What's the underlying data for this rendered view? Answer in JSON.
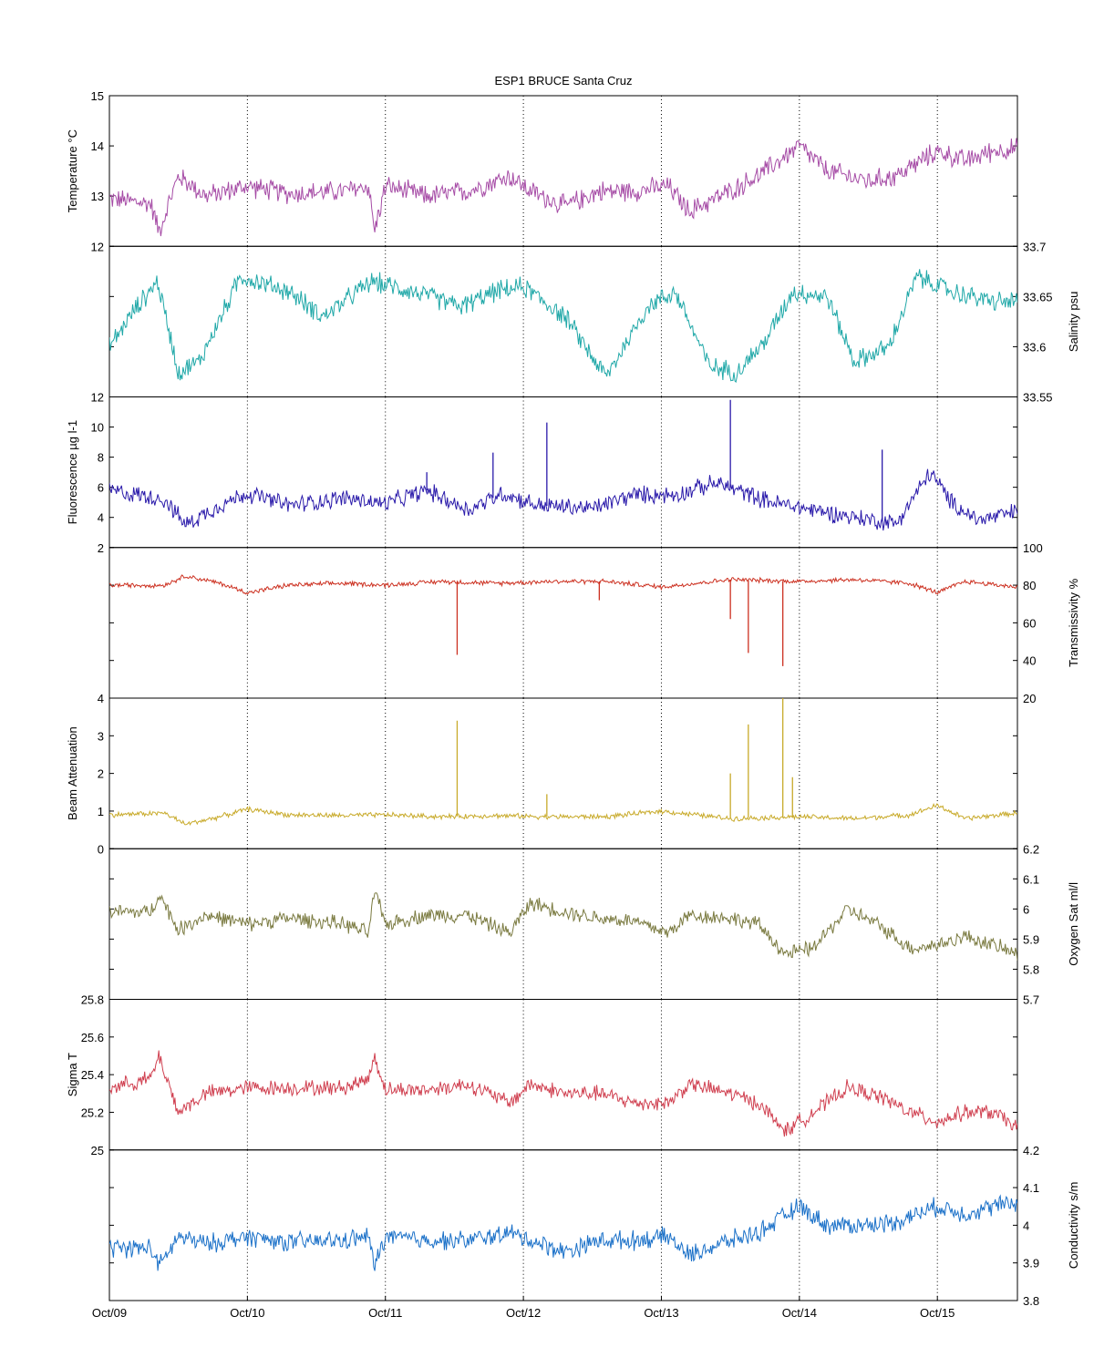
{
  "chart_data": {
    "type": "line",
    "title": "ESP1 BRUCE Santa Cruz",
    "x": {
      "ticks": [
        "Oct/09",
        "Oct/10",
        "Oct/11",
        "Oct/12",
        "Oct/13",
        "Oct/14",
        "Oct/15"
      ],
      "range_days": [
        0,
        6.58
      ],
      "grid": "vertical dotted at midnight"
    },
    "panels": [
      {
        "ylabel": "Temperature °C",
        "side": "left",
        "ylim": [
          12,
          15
        ],
        "ticks": [
          "12",
          "13",
          "14",
          "15"
        ],
        "color": "#a64ca6",
        "day": [
          0,
          0.3,
          0.36,
          0.5,
          0.7,
          1.0,
          1.3,
          1.7,
          1.88,
          1.92,
          2.0,
          2.3,
          2.6,
          2.9,
          3.05,
          3.3,
          3.55,
          3.8,
          4.05,
          4.2,
          4.5,
          4.7,
          5.0,
          5.2,
          5.5,
          5.7,
          6.0,
          6.2,
          6.4,
          6.58
        ],
        "values": [
          12.95,
          12.85,
          12.3,
          13.4,
          13.0,
          13.2,
          13.05,
          13.1,
          13.2,
          12.3,
          13.2,
          13.0,
          13.1,
          13.4,
          13.1,
          12.8,
          13.1,
          13.1,
          13.2,
          12.7,
          13.1,
          13.4,
          14.0,
          13.5,
          13.3,
          13.4,
          13.9,
          13.7,
          13.9,
          13.95
        ],
        "noise": 0.25
      },
      {
        "ylabel": "Salinity psu",
        "side": "right",
        "ylim": [
          33.55,
          33.7
        ],
        "ticks": [
          "33.55",
          "33.6",
          "33.65",
          "33.7"
        ],
        "color": "#20a8a8",
        "day": [
          0,
          0.2,
          0.35,
          0.5,
          0.65,
          0.95,
          1.3,
          1.55,
          1.9,
          2.2,
          2.55,
          2.8,
          3.0,
          3.3,
          3.6,
          3.9,
          4.1,
          4.35,
          4.55,
          4.75,
          4.95,
          5.2,
          5.4,
          5.65,
          5.85,
          6.1,
          6.4,
          6.58
        ],
        "values": [
          33.6,
          33.64,
          33.665,
          33.575,
          33.585,
          33.67,
          33.655,
          33.63,
          33.665,
          33.655,
          33.64,
          33.655,
          33.66,
          33.63,
          33.57,
          33.64,
          33.655,
          33.58,
          33.575,
          33.605,
          33.655,
          33.65,
          33.585,
          33.6,
          33.67,
          33.655,
          33.645,
          33.645
        ],
        "noise": 0.012
      },
      {
        "ylabel": "Fluorescence µg l-1",
        "side": "left",
        "ylim": [
          2,
          12
        ],
        "ticks": [
          "2",
          "4",
          "6",
          "8",
          "10",
          "12"
        ],
        "color": "#2a1aaa",
        "day": [
          0,
          0.4,
          0.55,
          0.8,
          1.0,
          1.3,
          1.7,
          2.0,
          2.3,
          2.6,
          2.85,
          3.1,
          3.5,
          3.8,
          4.1,
          4.4,
          4.8,
          5.1,
          5.4,
          5.7,
          5.95,
          6.1,
          6.3,
          6.58
        ],
        "values": [
          5.8,
          5.2,
          3.5,
          4.8,
          5.6,
          4.8,
          5.3,
          4.9,
          5.8,
          4.5,
          5.6,
          4.8,
          4.6,
          5.5,
          5.5,
          6.3,
          5.0,
          4.5,
          4.0,
          3.6,
          7.0,
          5.0,
          3.8,
          4.4
        ],
        "noise": 0.7,
        "spikes": [
          {
            "day": 3.17,
            "value": 10.3
          },
          {
            "day": 4.5,
            "value": 11.8
          },
          {
            "day": 5.6,
            "value": 8.5
          },
          {
            "day": 2.78,
            "value": 8.3
          },
          {
            "day": 2.3,
            "value": 7.0
          }
        ]
      },
      {
        "ylabel": "Transmissivity %",
        "side": "right",
        "ylim": [
          20,
          100
        ],
        "ticks": [
          "20",
          "40",
          "60",
          "80",
          "100"
        ],
        "color": "#cc3020",
        "day": [
          0,
          0.4,
          0.55,
          0.8,
          1.0,
          1.3,
          1.7,
          2.0,
          2.4,
          2.8,
          3.2,
          3.6,
          4.0,
          4.5,
          5.0,
          5.4,
          5.8,
          6.0,
          6.2,
          6.58
        ],
        "values": [
          80,
          80,
          85,
          81,
          76,
          80,
          81,
          80,
          82,
          81,
          82,
          82,
          79,
          83,
          82,
          83,
          81,
          76,
          82,
          79
        ],
        "noise": 1.5,
        "spikes": [
          {
            "day": 2.52,
            "value": 43
          },
          {
            "day": 4.63,
            "value": 44
          },
          {
            "day": 4.88,
            "value": 37
          },
          {
            "day": 4.5,
            "value": 62
          },
          {
            "day": 3.55,
            "value": 72
          }
        ]
      },
      {
        "ylabel": "Beam Attenuation",
        "side": "left",
        "ylim": [
          0,
          4
        ],
        "ticks": [
          "0",
          "1",
          "2",
          "3",
          "4"
        ],
        "color": "#c8aa2a",
        "day": [
          0,
          0.4,
          0.55,
          0.8,
          1.0,
          1.3,
          1.7,
          2.0,
          2.4,
          2.8,
          3.2,
          3.6,
          4.0,
          4.5,
          5.0,
          5.4,
          5.8,
          6.0,
          6.2,
          6.58
        ],
        "values": [
          0.9,
          0.95,
          0.65,
          0.85,
          1.05,
          0.9,
          0.88,
          0.9,
          0.85,
          0.88,
          0.85,
          0.85,
          1.0,
          0.8,
          0.85,
          0.8,
          0.9,
          1.15,
          0.8,
          0.95
        ],
        "noise": 0.08,
        "spikes": [
          {
            "day": 2.52,
            "value": 3.4
          },
          {
            "day": 4.63,
            "value": 3.3
          },
          {
            "day": 4.88,
            "value": 4.0
          },
          {
            "day": 4.5,
            "value": 2.0
          },
          {
            "day": 4.95,
            "value": 1.9
          },
          {
            "day": 3.17,
            "value": 1.45
          }
        ]
      },
      {
        "ylabel": "Oxygen Sat ml/l",
        "side": "right",
        "ylim": [
          5.7,
          6.2
        ],
        "ticks": [
          "5.7",
          "5.8",
          "5.9",
          "6",
          "6.1",
          "6.2"
        ],
        "color": "#7a7a40",
        "day": [
          0,
          0.3,
          0.36,
          0.5,
          0.7,
          1.0,
          1.3,
          1.7,
          1.88,
          1.92,
          2.0,
          2.3,
          2.6,
          2.9,
          3.05,
          3.3,
          3.55,
          3.8,
          4.05,
          4.2,
          4.5,
          4.7,
          4.9,
          5.1,
          5.35,
          5.6,
          5.8,
          6.0,
          6.2,
          6.4,
          6.58
        ],
        "values": [
          5.99,
          5.99,
          6.05,
          5.93,
          5.98,
          5.95,
          5.97,
          5.95,
          5.92,
          6.06,
          5.95,
          5.98,
          5.98,
          5.92,
          6.02,
          5.99,
          5.97,
          5.96,
          5.92,
          5.98,
          5.97,
          5.95,
          5.85,
          5.87,
          6.0,
          5.94,
          5.87,
          5.88,
          5.91,
          5.88,
          5.85
        ],
        "noise": 0.03
      },
      {
        "ylabel": "Sigma T",
        "side": "left",
        "ylim": [
          25,
          25.8
        ],
        "ticks": [
          "25",
          "25.2",
          "25.4",
          "25.6",
          "25.8"
        ],
        "color": "#d04050",
        "day": [
          0,
          0.3,
          0.36,
          0.5,
          0.7,
          1.0,
          1.3,
          1.7,
          1.88,
          1.92,
          2.0,
          2.3,
          2.6,
          2.9,
          3.05,
          3.3,
          3.55,
          3.8,
          4.05,
          4.2,
          4.5,
          4.7,
          4.9,
          5.1,
          5.35,
          5.6,
          5.8,
          6.0,
          6.2,
          6.4,
          6.58
        ],
        "values": [
          25.33,
          25.38,
          25.5,
          25.2,
          25.3,
          25.33,
          25.33,
          25.33,
          25.38,
          25.5,
          25.32,
          25.32,
          25.35,
          25.25,
          25.35,
          25.3,
          25.3,
          25.25,
          25.25,
          25.35,
          25.3,
          25.25,
          25.1,
          25.2,
          25.33,
          25.28,
          25.2,
          25.15,
          25.2,
          25.2,
          25.12
        ],
        "noise": 0.05
      },
      {
        "ylabel": "Conductivity s/m",
        "side": "right",
        "ylim": [
          3.8,
          4.2
        ],
        "ticks": [
          "3.8",
          "3.9",
          "4",
          "4.1",
          "4.2"
        ],
        "color": "#1a70c8",
        "day": [
          0,
          0.3,
          0.36,
          0.5,
          0.7,
          1.0,
          1.3,
          1.7,
          1.88,
          1.92,
          2.0,
          2.3,
          2.6,
          2.9,
          3.05,
          3.3,
          3.55,
          3.8,
          4.05,
          4.2,
          4.5,
          4.7,
          5.0,
          5.2,
          5.5,
          5.7,
          6.0,
          6.2,
          6.4,
          6.58
        ],
        "values": [
          3.94,
          3.94,
          3.89,
          3.97,
          3.95,
          3.97,
          3.955,
          3.96,
          3.97,
          3.89,
          3.97,
          3.96,
          3.96,
          3.98,
          3.96,
          3.93,
          3.96,
          3.96,
          3.97,
          3.92,
          3.96,
          3.98,
          4.05,
          4.0,
          4.0,
          4.01,
          4.05,
          4.03,
          4.05,
          4.06
        ],
        "noise": 0.03
      }
    ]
  }
}
